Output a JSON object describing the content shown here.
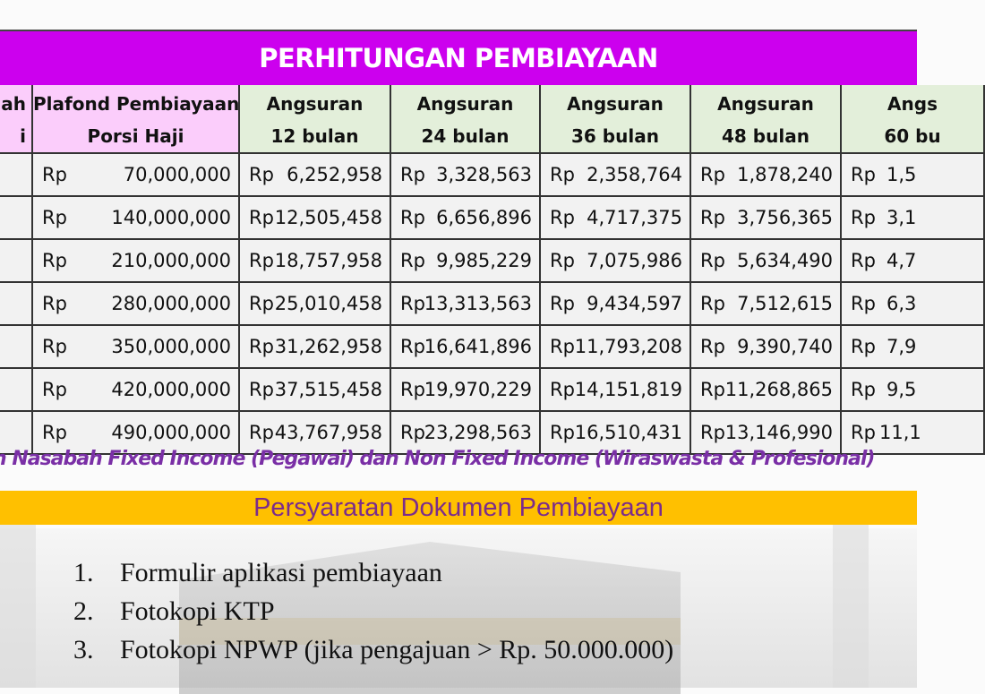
{
  "title": "PERHITUNGAN PEMBIAYAAN",
  "table": {
    "headers": [
      {
        "line1": "ah",
        "line2": "i"
      },
      {
        "line1": "Plafond Pembiayaan",
        "line2": "Porsi Haji"
      },
      {
        "line1": "Angsuran",
        "line2": "12 bulan"
      },
      {
        "line1": "Angsuran",
        "line2": "24 bulan"
      },
      {
        "line1": "Angsuran",
        "line2": "36 bulan"
      },
      {
        "line1": "Angsuran",
        "line2": "48 bulan"
      },
      {
        "line1": "Angs",
        "line2": "60 bu"
      }
    ],
    "currency": "Rp",
    "rows": [
      [
        "70,000,000",
        "6,252,958",
        "3,328,563",
        "2,358,764",
        "1,878,240",
        "1,5"
      ],
      [
        "140,000,000",
        "12,505,458",
        "6,656,896",
        "4,717,375",
        "3,756,365",
        "3,1"
      ],
      [
        "210,000,000",
        "18,757,958",
        "9,985,229",
        "7,075,986",
        "5,634,490",
        "4,7"
      ],
      [
        "280,000,000",
        "25,010,458",
        "13,313,563",
        "9,434,597",
        "7,512,615",
        "6,3"
      ],
      [
        "350,000,000",
        "31,262,958",
        "16,641,896",
        "11,793,208",
        "9,390,740",
        "7,9"
      ],
      [
        "420,000,000",
        "37,515,458",
        "19,970,229",
        "14,151,819",
        "11,268,865",
        "9,5"
      ],
      [
        "490,000,000",
        "43,767,958",
        "23,298,563",
        "16,510,431",
        "13,146,990",
        "11,1"
      ]
    ]
  },
  "note": "n Nasabah Fixed Income (Pegawai) dan Non Fixed Income (Wiraswasta & Profesional)",
  "requirements": {
    "title": "Persyaratan Dokumen Pembiayaan",
    "items": [
      {
        "num": "1.",
        "text": "Formulir aplikasi pembiayaan"
      },
      {
        "num": "2.",
        "text": "Fotokopi KTP"
      },
      {
        "num": "3.",
        "text": "Fotokopi NPWP (jika pengajuan > Rp. 50.000.000)"
      }
    ]
  },
  "colors": {
    "title_bg": "#cc00ee",
    "plafond_header": "#fbcdfb",
    "angsuran_header": "#e3efda",
    "note_text": "#7a2fa6",
    "requirements_bar": "#ffc000"
  }
}
